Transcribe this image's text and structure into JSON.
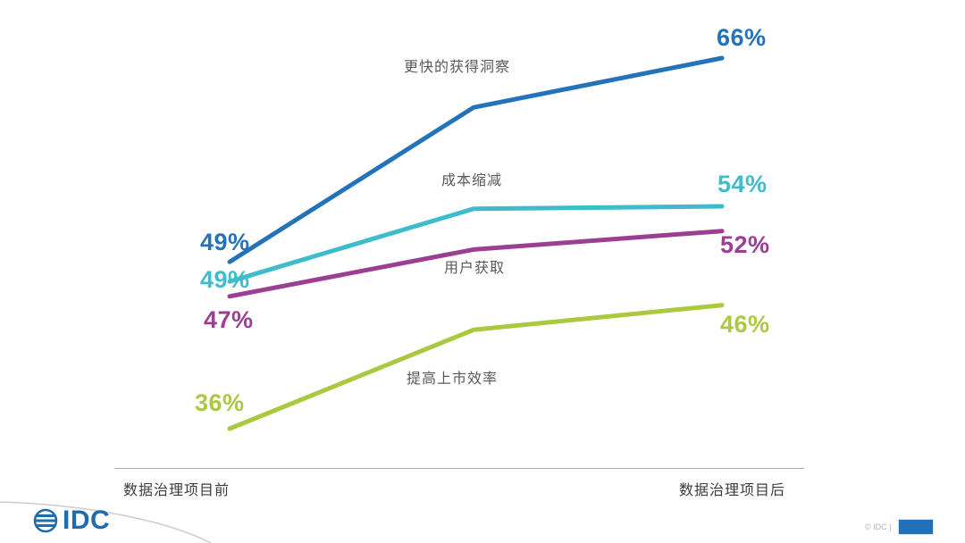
{
  "chart_data": {
    "type": "line",
    "title": "",
    "subtitle": "",
    "x_axis": {
      "left_label": "数据治理项目前",
      "right_label": "数据治理项目后"
    },
    "ylim": [
      30,
      70
    ],
    "grid": false,
    "legend": "inline-labels",
    "series": [
      {
        "name": "更快的获得洞察",
        "color": "#2373ba",
        "values": [
          49,
          62,
          66
        ],
        "start_label": "49%",
        "end_label": "66%"
      },
      {
        "name": "成本缩减",
        "color": "#3fbccb",
        "values": [
          49,
          53.8,
          54
        ],
        "start_label": "49%",
        "end_label": "54%"
      },
      {
        "name": "用户获取",
        "color": "#9c3e92",
        "values": [
          47,
          50.5,
          52
        ],
        "start_label": "47%",
        "end_label": "52%"
      },
      {
        "name": "提高上市效率",
        "color": "#abc93f",
        "values": [
          36,
          44,
          46
        ],
        "start_label": "36%",
        "end_label": "46%"
      }
    ]
  },
  "footer": {
    "logo_text": "IDC",
    "copyright": "© IDC |"
  }
}
